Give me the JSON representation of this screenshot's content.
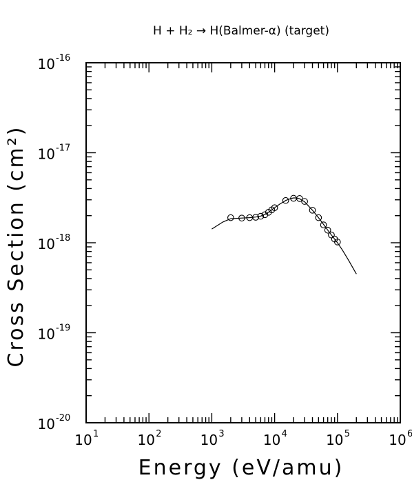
{
  "chart_data": {
    "type": "scatter",
    "title": "H + H₂ → H(Balmer-α) (target)",
    "xlabel": "Energy (eV/amu)",
    "ylabel": "Cross Section (cm²)",
    "xscale": "log",
    "yscale": "log",
    "xlim": [
      10,
      1000000
    ],
    "ylim": [
      1e-20,
      1e-16
    ],
    "x_ticks": [
      {
        "base": "10",
        "exp": "1"
      },
      {
        "base": "10",
        "exp": "2"
      },
      {
        "base": "10",
        "exp": "3"
      },
      {
        "base": "10",
        "exp": "4"
      },
      {
        "base": "10",
        "exp": "5"
      },
      {
        "base": "10",
        "exp": "6"
      }
    ],
    "y_ticks": [
      {
        "base": "10",
        "exp": "-20"
      },
      {
        "base": "10",
        "exp": "-19"
      },
      {
        "base": "10",
        "exp": "-18"
      },
      {
        "base": "10",
        "exp": "-17"
      },
      {
        "base": "10",
        "exp": "-16"
      }
    ],
    "grid": false,
    "series": [
      {
        "kind": "points",
        "marker": "open-circle",
        "x": [
          2000,
          3000,
          4000,
          5000,
          6000,
          7000,
          8000,
          9000,
          10000,
          15000,
          20000,
          25000,
          30000,
          40000,
          50000,
          60000,
          70000,
          80000,
          90000,
          100000
        ],
        "y": [
          1.9e-18,
          1.88e-18,
          1.9e-18,
          1.92e-18,
          1.97e-18,
          2.05e-18,
          2.18e-18,
          2.32e-18,
          2.45e-18,
          2.95e-18,
          3.12e-18,
          3.1e-18,
          2.88e-18,
          2.3e-18,
          1.9e-18,
          1.58e-18,
          1.38e-18,
          1.22e-18,
          1.1e-18,
          1.02e-18
        ]
      },
      {
        "kind": "line",
        "x": [
          1000,
          1500,
          2000,
          3000,
          4000,
          5000,
          6000,
          7000,
          8000,
          9000,
          10000,
          12000,
          15000,
          18000,
          20000,
          22000,
          25000,
          30000,
          40000,
          50000,
          60000,
          70000,
          80000,
          90000,
          100000,
          120000,
          150000,
          200000
        ],
        "y": [
          1.42e-18,
          1.7e-18,
          1.85e-18,
          1.88e-18,
          1.9e-18,
          1.93e-18,
          1.98e-18,
          2.06e-18,
          2.18e-18,
          2.32e-18,
          2.45e-18,
          2.68e-18,
          2.95e-18,
          3.1e-18,
          3.15e-18,
          3.15e-18,
          3.08e-18,
          2.85e-18,
          2.3e-18,
          1.9e-18,
          1.6e-18,
          1.38e-18,
          1.22e-18,
          1.1e-18,
          1e-18,
          8.3e-19,
          6.4e-19,
          4.5e-19
        ]
      }
    ],
    "colors": {
      "ink": "#000000",
      "background": "#ffffff"
    }
  }
}
